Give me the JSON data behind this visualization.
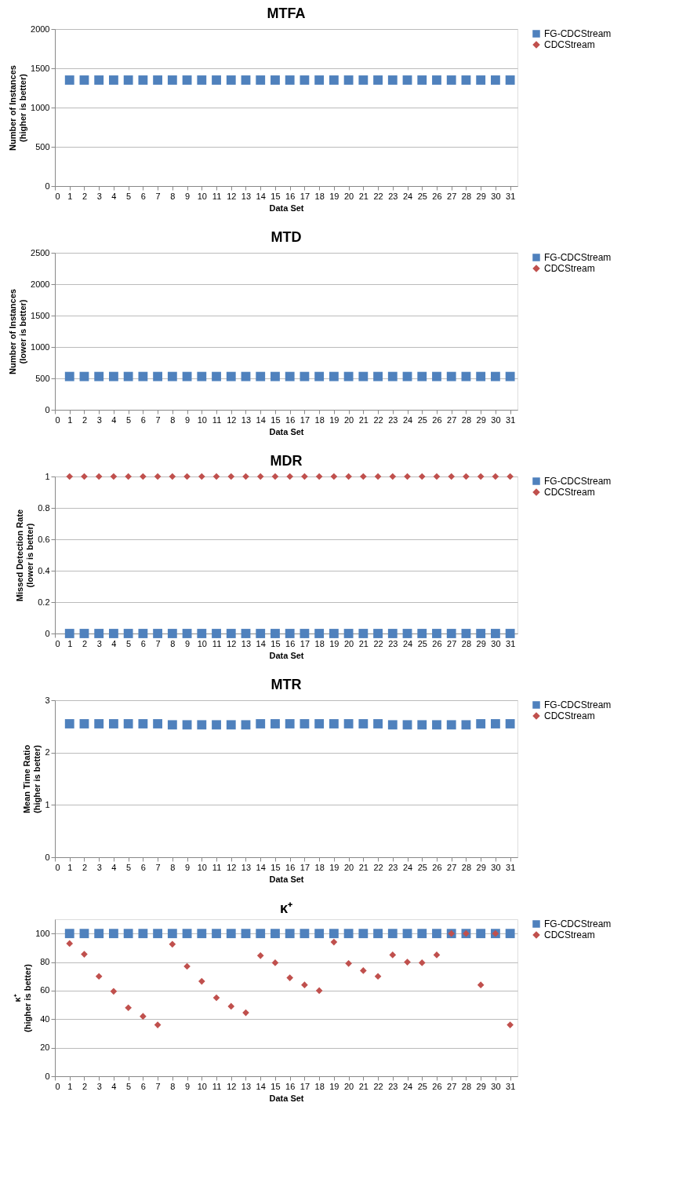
{
  "chart_data": [
    {
      "type": "scatter",
      "title": "MTFA",
      "xlabel": "Data Set",
      "ylabel": "Number of Instances\n(higher is better)",
      "x": [
        1,
        2,
        3,
        4,
        5,
        6,
        7,
        8,
        9,
        10,
        11,
        12,
        13,
        14,
        15,
        16,
        17,
        18,
        19,
        20,
        21,
        22,
        23,
        24,
        25,
        26,
        27,
        28,
        29,
        30,
        31
      ],
      "xlim": [
        0,
        31.5
      ],
      "xticks": [
        0,
        1,
        2,
        3,
        4,
        5,
        6,
        7,
        8,
        9,
        10,
        11,
        12,
        13,
        14,
        15,
        16,
        17,
        18,
        19,
        20,
        21,
        22,
        23,
        24,
        25,
        26,
        27,
        28,
        29,
        30,
        31
      ],
      "ylim": [
        0,
        2000
      ],
      "yticks": [
        0,
        500,
        1000,
        1500,
        2000
      ],
      "grid": "y",
      "legend": "right",
      "series": [
        {
          "name": "FG-CDCStream",
          "color": "#4f81bd",
          "marker": "square",
          "values": [
            1350,
            1350,
            1350,
            1350,
            1350,
            1350,
            1350,
            1350,
            1350,
            1350,
            1350,
            1350,
            1350,
            1350,
            1350,
            1350,
            1350,
            1350,
            1350,
            1350,
            1350,
            1350,
            1350,
            1350,
            1350,
            1350,
            1350,
            1350,
            1350,
            1350,
            1350
          ]
        },
        {
          "name": "CDCStream",
          "color": "#c0504d",
          "marker": "diamond",
          "values": [
            null,
            null,
            null,
            null,
            null,
            null,
            null,
            null,
            null,
            null,
            null,
            null,
            null,
            null,
            null,
            null,
            null,
            null,
            null,
            null,
            null,
            null,
            null,
            null,
            null,
            null,
            null,
            null,
            null,
            null,
            null
          ]
        }
      ]
    },
    {
      "type": "scatter",
      "title": "MTD",
      "xlabel": "Data Set",
      "ylabel": "Number of Instances\n(lower is better)",
      "x": [
        1,
        2,
        3,
        4,
        5,
        6,
        7,
        8,
        9,
        10,
        11,
        12,
        13,
        14,
        15,
        16,
        17,
        18,
        19,
        20,
        21,
        22,
        23,
        24,
        25,
        26,
        27,
        28,
        29,
        30,
        31
      ],
      "xlim": [
        0,
        31.5
      ],
      "xticks": [
        0,
        1,
        2,
        3,
        4,
        5,
        6,
        7,
        8,
        9,
        10,
        11,
        12,
        13,
        14,
        15,
        16,
        17,
        18,
        19,
        20,
        21,
        22,
        23,
        24,
        25,
        26,
        27,
        28,
        29,
        30,
        31
      ],
      "ylim": [
        0,
        2500
      ],
      "yticks": [
        0,
        500,
        1000,
        1500,
        2000,
        2500
      ],
      "grid": "y",
      "legend": "right",
      "series": [
        {
          "name": "FG-CDCStream",
          "color": "#4f81bd",
          "marker": "square",
          "values": [
            530,
            530,
            530,
            530,
            530,
            530,
            530,
            530,
            530,
            530,
            530,
            530,
            530,
            530,
            530,
            530,
            530,
            530,
            530,
            530,
            530,
            530,
            530,
            530,
            530,
            530,
            530,
            530,
            530,
            530,
            530
          ]
        },
        {
          "name": "CDCStream",
          "color": "#c0504d",
          "marker": "diamond",
          "values": [
            null,
            null,
            null,
            null,
            null,
            null,
            null,
            null,
            null,
            null,
            null,
            null,
            null,
            null,
            null,
            null,
            null,
            null,
            null,
            null,
            null,
            null,
            null,
            null,
            null,
            null,
            null,
            null,
            null,
            null,
            null
          ]
        }
      ]
    },
    {
      "type": "scatter",
      "title": "MDR",
      "xlabel": "Data Set",
      "ylabel": "Missed Detection Rate\n(lower is better)",
      "x": [
        1,
        2,
        3,
        4,
        5,
        6,
        7,
        8,
        9,
        10,
        11,
        12,
        13,
        14,
        15,
        16,
        17,
        18,
        19,
        20,
        21,
        22,
        23,
        24,
        25,
        26,
        27,
        28,
        29,
        30,
        31
      ],
      "xlim": [
        0,
        31.5
      ],
      "xticks": [
        0,
        1,
        2,
        3,
        4,
        5,
        6,
        7,
        8,
        9,
        10,
        11,
        12,
        13,
        14,
        15,
        16,
        17,
        18,
        19,
        20,
        21,
        22,
        23,
        24,
        25,
        26,
        27,
        28,
        29,
        30,
        31
      ],
      "ylim": [
        0,
        1
      ],
      "yticks": [
        0,
        0.2,
        0.4,
        0.6,
        0.8,
        1
      ],
      "grid": "y",
      "legend": "right",
      "series": [
        {
          "name": "FG-CDCStream",
          "color": "#4f81bd",
          "marker": "square",
          "values": [
            0,
            0,
            0,
            0,
            0,
            0,
            0,
            0,
            0,
            0,
            0,
            0,
            0,
            0,
            0,
            0,
            0,
            0,
            0,
            0,
            0,
            0,
            0,
            0,
            0,
            0,
            0,
            0,
            0,
            0,
            0
          ]
        },
        {
          "name": "CDCStream",
          "color": "#c0504d",
          "marker": "diamond",
          "values": [
            1,
            1,
            1,
            1,
            1,
            1,
            1,
            1,
            1,
            1,
            1,
            1,
            1,
            1,
            1,
            1,
            1,
            1,
            1,
            1,
            1,
            1,
            1,
            1,
            1,
            1,
            1,
            1,
            1,
            1,
            1
          ]
        }
      ]
    },
    {
      "type": "scatter",
      "title": "MTR",
      "xlabel": "Data Set",
      "ylabel": "Mean Time Ratio\n(higher is better)",
      "x": [
        1,
        2,
        3,
        4,
        5,
        6,
        7,
        8,
        9,
        10,
        11,
        12,
        13,
        14,
        15,
        16,
        17,
        18,
        19,
        20,
        21,
        22,
        23,
        24,
        25,
        26,
        27,
        28,
        29,
        30,
        31
      ],
      "xlim": [
        0,
        31.5
      ],
      "xticks": [
        0,
        1,
        2,
        3,
        4,
        5,
        6,
        7,
        8,
        9,
        10,
        11,
        12,
        13,
        14,
        15,
        16,
        17,
        18,
        19,
        20,
        21,
        22,
        23,
        24,
        25,
        26,
        27,
        28,
        29,
        30,
        31
      ],
      "ylim": [
        0,
        3
      ],
      "yticks": [
        0,
        1,
        2,
        3
      ],
      "grid": "y",
      "legend": "right",
      "series": [
        {
          "name": "FG-CDCStream",
          "color": "#4f81bd",
          "marker": "square",
          "values": [
            2.55,
            2.55,
            2.55,
            2.55,
            2.55,
            2.55,
            2.55,
            2.53,
            2.53,
            2.53,
            2.53,
            2.53,
            2.53,
            2.55,
            2.55,
            2.55,
            2.55,
            2.55,
            2.55,
            2.55,
            2.55,
            2.55,
            2.53,
            2.53,
            2.53,
            2.53,
            2.53,
            2.53,
            2.55,
            2.55,
            2.55
          ]
        },
        {
          "name": "CDCStream",
          "color": "#c0504d",
          "marker": "diamond",
          "values": [
            null,
            null,
            null,
            null,
            null,
            null,
            null,
            null,
            null,
            null,
            null,
            null,
            null,
            null,
            null,
            null,
            null,
            null,
            null,
            null,
            null,
            null,
            null,
            null,
            null,
            null,
            null,
            null,
            null,
            null,
            null
          ]
        }
      ]
    },
    {
      "type": "scatter",
      "title": "κ⁺",
      "xlabel": "Data Set",
      "ylabel": "κ⁺\n(higher is better)",
      "x": [
        1,
        2,
        3,
        4,
        5,
        6,
        7,
        8,
        9,
        10,
        11,
        12,
        13,
        14,
        15,
        16,
        17,
        18,
        19,
        20,
        21,
        22,
        23,
        24,
        25,
        26,
        27,
        28,
        29,
        30,
        31
      ],
      "xlim": [
        0,
        31.5
      ],
      "xticks": [
        0,
        1,
        2,
        3,
        4,
        5,
        6,
        7,
        8,
        9,
        10,
        11,
        12,
        13,
        14,
        15,
        16,
        17,
        18,
        19,
        20,
        21,
        22,
        23,
        24,
        25,
        26,
        27,
        28,
        29,
        30,
        31
      ],
      "ylim": [
        0,
        110
      ],
      "yticks": [
        0,
        20,
        40,
        60,
        80,
        100
      ],
      "grid": "y",
      "legend": "right",
      "series": [
        {
          "name": "FG-CDCStream",
          "color": "#4f81bd",
          "marker": "square",
          "values": [
            100,
            100,
            100,
            100,
            100,
            100,
            100,
            100,
            100,
            100,
            100,
            100,
            100,
            100,
            100,
            100,
            100,
            100,
            100,
            100,
            100,
            100,
            100,
            100,
            100,
            100,
            100,
            100,
            100,
            100,
            100
          ]
        },
        {
          "name": "CDCStream",
          "color": "#c0504d",
          "marker": "diamond",
          "values": [
            93,
            85.5,
            70,
            59.5,
            48,
            42,
            36,
            92.5,
            77,
            66.5,
            55,
            49,
            44.5,
            84.5,
            79.5,
            69,
            64,
            60,
            94,
            79,
            74,
            70,
            85,
            80,
            79.5,
            85,
            100,
            100,
            64,
            100,
            36
          ]
        }
      ]
    }
  ]
}
